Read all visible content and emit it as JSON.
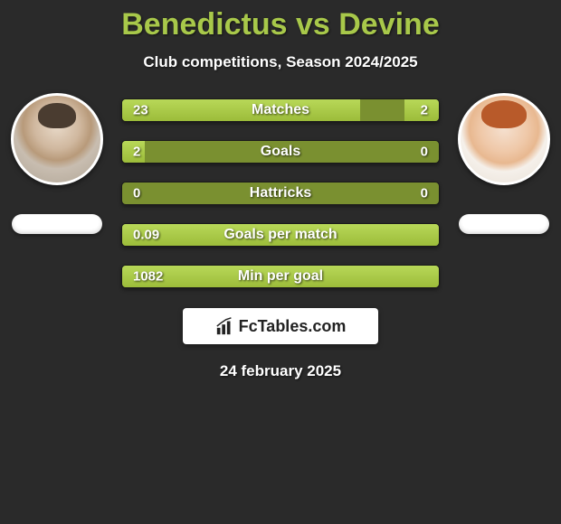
{
  "title": "Benedictus vs Devine",
  "subtitle": "Club competitions, Season 2024/2025",
  "date": "24 february 2025",
  "logo_text": "FcTables.com",
  "colors": {
    "bg": "#2a2a2a",
    "accent": "#a8c84a",
    "bar_track": "#7a9030",
    "bar_fill_start": "#b8d858",
    "bar_fill_end": "#9cbc3a",
    "text": "#ffffff"
  },
  "players": {
    "left": {
      "name": "Benedictus"
    },
    "right": {
      "name": "Devine"
    }
  },
  "stats": [
    {
      "label": "Matches",
      "left_val": "23",
      "right_val": "2",
      "left_pct": 75,
      "right_pct": 11
    },
    {
      "label": "Goals",
      "left_val": "2",
      "right_val": "0",
      "left_pct": 7,
      "right_pct": 0
    },
    {
      "label": "Hattricks",
      "left_val": "0",
      "right_val": "0",
      "left_pct": 0,
      "right_pct": 0
    },
    {
      "label": "Goals per match",
      "left_val": "0.09",
      "right_val": "",
      "left_pct": 100,
      "right_pct": 0
    },
    {
      "label": "Min per goal",
      "left_val": "1082",
      "right_val": "",
      "left_pct": 100,
      "right_pct": 0
    }
  ]
}
